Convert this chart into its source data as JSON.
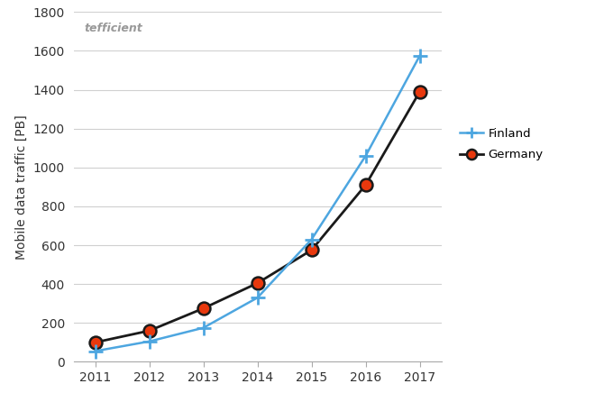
{
  "years": [
    2011,
    2012,
    2013,
    2014,
    2015,
    2016,
    2017
  ],
  "finland": [
    55,
    105,
    175,
    330,
    630,
    1060,
    1575
  ],
  "germany": [
    100,
    160,
    275,
    405,
    575,
    910,
    1390
  ],
  "finland_color": "#4da6e0",
  "germany_color": "#1a1a1a",
  "germany_marker_face": "#e8380d",
  "ylabel": "Mobile data traffic [PB]",
  "ylim": [
    0,
    1800
  ],
  "yticks": [
    0,
    200,
    400,
    600,
    800,
    1000,
    1200,
    1400,
    1600,
    1800
  ],
  "xlim": [
    2010.6,
    2017.4
  ],
  "watermark": "tefficient",
  "legend_finland": "Finland",
  "legend_germany": "Germany",
  "bg_color": "#ffffff",
  "grid_color": "#d0d0d0",
  "spine_color": "#aaaaaa"
}
